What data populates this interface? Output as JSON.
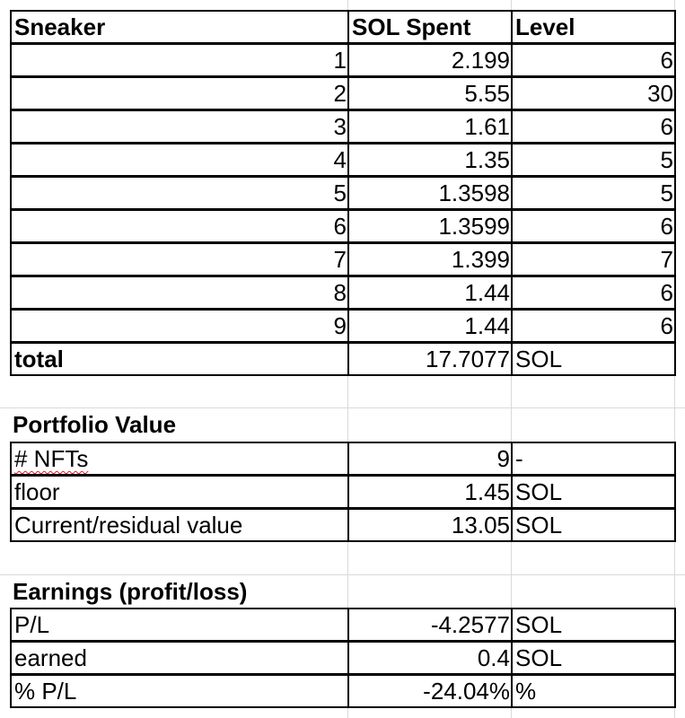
{
  "headers": {
    "col_a": "Sneaker",
    "col_b": "SOL Spent",
    "col_c": "Level"
  },
  "sneakers": [
    {
      "id": "1",
      "sol": "2.199",
      "level": "6"
    },
    {
      "id": "2",
      "sol": "5.55",
      "level": "30"
    },
    {
      "id": "3",
      "sol": "1.61",
      "level": "6"
    },
    {
      "id": "4",
      "sol": "1.35",
      "level": "5"
    },
    {
      "id": "5",
      "sol": "1.3598",
      "level": "5"
    },
    {
      "id": "6",
      "sol": "1.3599",
      "level": "6"
    },
    {
      "id": "7",
      "sol": "1.399",
      "level": "7"
    },
    {
      "id": "8",
      "sol": "1.44",
      "level": "6"
    },
    {
      "id": "9",
      "sol": "1.44",
      "level": "6"
    }
  ],
  "total": {
    "label": "total",
    "value": "17.7077",
    "unit": "SOL"
  },
  "portfolio": {
    "title": "Portfolio Value",
    "rows": [
      {
        "label": "# NFTs",
        "value": "9",
        "unit": "-"
      },
      {
        "label": "floor",
        "value": "1.45",
        "unit": "SOL"
      },
      {
        "label": "Current/residual value",
        "value": "13.05",
        "unit": "SOL"
      }
    ]
  },
  "earnings": {
    "title": "Earnings (profit/loss)",
    "rows": [
      {
        "label": "P/L",
        "value": "-4.2577",
        "unit": "SOL"
      },
      {
        "label": "earned",
        "value": "0.4",
        "unit": "SOL"
      },
      {
        "label": "% P/L",
        "value": "-24.04%",
        "unit": "%"
      }
    ]
  }
}
